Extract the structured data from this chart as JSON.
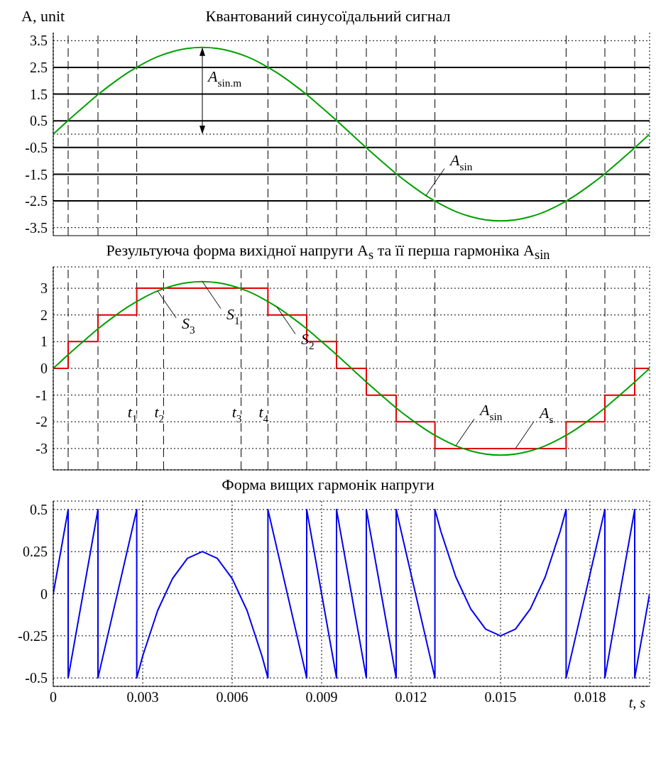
{
  "chart_data": [
    {
      "type": "line",
      "title": "Квантований синусоїдальний сигнал",
      "ylabel": "A, unit",
      "x": [
        0,
        0.0005,
        0.001,
        0.0015,
        0.002,
        0.0025,
        0.003,
        0.0035,
        0.004,
        0.0045,
        0.005,
        0.0055,
        0.006,
        0.0065,
        0.007,
        0.0075,
        0.008,
        0.0085,
        0.009,
        0.0095,
        0.01,
        0.0105,
        0.011,
        0.0115,
        0.012,
        0.0125,
        0.013,
        0.0135,
        0.014,
        0.0145,
        0.015,
        0.0155,
        0.016,
        0.0165,
        0.017,
        0.0175,
        0.018,
        0.0185,
        0.019,
        0.0195,
        0.02
      ],
      "series": [
        {
          "color": "#00a000",
          "values": [
            0,
            0.51,
            1.0,
            1.48,
            1.91,
            2.3,
            2.63,
            2.9,
            3.09,
            3.21,
            3.25,
            3.21,
            3.09,
            2.9,
            2.63,
            2.3,
            1.91,
            1.48,
            1.0,
            0.51,
            0,
            -0.51,
            -1.0,
            -1.48,
            -1.91,
            -2.3,
            -2.63,
            -2.9,
            -3.09,
            -3.21,
            -3.25,
            -3.21,
            -3.09,
            -2.9,
            -2.63,
            -2.3,
            -1.91,
            -1.48,
            -1.0,
            -0.51,
            0
          ]
        }
      ],
      "xlim": [
        0,
        0.02
      ],
      "xticks": [
        0,
        0.003,
        0.006,
        0.009,
        0.012,
        0.015,
        0.018
      ],
      "ylim": [
        -3.8,
        3.8
      ],
      "yticks": [
        -3.5,
        -2.5,
        -1.5,
        -0.5,
        0.5,
        1.5,
        2.5,
        3.5
      ],
      "grid": "x",
      "tick_labels": "y",
      "marker": "none",
      "ref_lines": [
        {
          "axis": "y",
          "value": 3.5,
          "color": "#000000",
          "line_style": "dotted"
        },
        {
          "axis": "y",
          "value": -3.5,
          "color": "#000000",
          "line_style": "dotted"
        },
        {
          "axis": "y",
          "value": 2.5,
          "color": "#000000",
          "line_style": "solid"
        },
        {
          "axis": "y",
          "value": 1.5,
          "color": "#000000",
          "line_style": "solid"
        },
        {
          "axis": "y",
          "value": 0.5,
          "color": "#000000",
          "line_style": "solid"
        },
        {
          "axis": "y",
          "value": -0.5,
          "color": "#000000",
          "line_style": "solid"
        },
        {
          "axis": "y",
          "value": -1.5,
          "color": "#000000",
          "line_style": "solid"
        },
        {
          "axis": "y",
          "value": -2.5,
          "color": "#000000",
          "line_style": "solid"
        },
        {
          "axis": "y",
          "value": 0,
          "color": "#000000",
          "line_style": "dotted"
        },
        {
          "axis": "x",
          "value": 0.0005,
          "color": "#000000",
          "line_style": "dashed"
        },
        {
          "axis": "x",
          "value": 0.0015,
          "color": "#000000",
          "line_style": "dashed"
        },
        {
          "axis": "x",
          "value": 0.0028,
          "color": "#000000",
          "line_style": "dashed"
        },
        {
          "axis": "x",
          "value": 0.0072,
          "color": "#000000",
          "line_style": "dashed"
        },
        {
          "axis": "x",
          "value": 0.0085,
          "color": "#000000",
          "line_style": "dashed"
        },
        {
          "axis": "x",
          "value": 0.0095,
          "color": "#000000",
          "line_style": "dashed"
        },
        {
          "axis": "x",
          "value": 0.0105,
          "color": "#000000",
          "line_style": "dashed"
        },
        {
          "axis": "x",
          "value": 0.0115,
          "color": "#000000",
          "line_style": "dashed"
        },
        {
          "axis": "x",
          "value": 0.0128,
          "color": "#000000",
          "line_style": "dashed"
        },
        {
          "axis": "x",
          "value": 0.0172,
          "color": "#000000",
          "line_style": "dashed"
        },
        {
          "axis": "x",
          "value": 0.0185,
          "color": "#000000",
          "line_style": "dashed"
        },
        {
          "axis": "x",
          "value": 0.0195,
          "color": "#000000",
          "line_style": "dashed"
        }
      ],
      "annotations": [
        {
          "text": "A$_{sin.m}$",
          "x": 0.005,
          "y": 3.25
        },
        {
          "text": "A$_{sin}$",
          "x": 0.0125,
          "y": -2.3
        }
      ]
    },
    {
      "type": "line",
      "title": "Результуюча форма вихідної напруги A$_{s}$ та її перша гармоніка A$_{sin}$",
      "x": [
        0,
        0.0005,
        0.001,
        0.0015,
        0.002,
        0.0025,
        0.003,
        0.0035,
        0.004,
        0.0045,
        0.005,
        0.0055,
        0.006,
        0.0065,
        0.007,
        0.0075,
        0.008,
        0.0085,
        0.009,
        0.0095,
        0.01,
        0.0105,
        0.011,
        0.0115,
        0.012,
        0.0125,
        0.013,
        0.0135,
        0.014,
        0.0145,
        0.015,
        0.0155,
        0.016,
        0.0165,
        0.017,
        0.0175,
        0.018,
        0.0185,
        0.019,
        0.0195,
        0.02
      ],
      "series": [
        {
          "type": "step",
          "color": "#e00000",
          "x": [
            0,
            0.0005,
            0.0015,
            0.0028,
            0.0072,
            0.0085,
            0.0095,
            0.0105,
            0.0115,
            0.0128,
            0.0172,
            0.0185,
            0.0195,
            0.02
          ],
          "values": [
            0,
            1,
            2,
            3,
            2,
            1,
            0,
            -1,
            -2,
            -3,
            -2,
            -1,
            0,
            0
          ]
        },
        {
          "color": "#00a000",
          "values": [
            0,
            0.51,
            1.0,
            1.48,
            1.91,
            2.3,
            2.63,
            2.9,
            3.09,
            3.21,
            3.25,
            3.21,
            3.09,
            2.9,
            2.63,
            2.3,
            1.91,
            1.48,
            1.0,
            0.51,
            0,
            -0.51,
            -1.0,
            -1.48,
            -1.91,
            -2.3,
            -2.63,
            -2.9,
            -3.09,
            -3.21,
            -3.25,
            -3.21,
            -3.09,
            -2.9,
            -2.63,
            -2.3,
            -1.91,
            -1.48,
            -1.0,
            -0.51,
            0
          ]
        }
      ],
      "xlim": [
        0,
        0.02
      ],
      "xticks": [
        0,
        0.003,
        0.006,
        0.009,
        0.012,
        0.015,
        0.018
      ],
      "ylim": [
        -3.8,
        3.8
      ],
      "yticks": [
        -3,
        -2,
        -1,
        0,
        1,
        2,
        3
      ],
      "grid": true,
      "tick_labels": "y",
      "marker": "none",
      "ref_lines": [
        {
          "axis": "x",
          "value": 0.0005,
          "color": "#000000",
          "line_style": "dashed"
        },
        {
          "axis": "x",
          "value": 0.0015,
          "color": "#000000",
          "line_style": "dashed"
        },
        {
          "axis": "x",
          "value": 0.0028,
          "color": "#000000",
          "line_style": "dashed"
        },
        {
          "axis": "x",
          "value": 0.0037,
          "color": "#000000",
          "line_style": "dashed"
        },
        {
          "axis": "x",
          "value": 0.0063,
          "color": "#000000",
          "line_style": "dashed"
        },
        {
          "axis": "x",
          "value": 0.0072,
          "color": "#000000",
          "line_style": "dashed"
        },
        {
          "axis": "x",
          "value": 0.0085,
          "color": "#000000",
          "line_style": "dashed"
        },
        {
          "axis": "x",
          "value": 0.0095,
          "color": "#000000",
          "line_style": "dashed"
        },
        {
          "axis": "x",
          "value": 0.0105,
          "color": "#000000",
          "line_style": "dashed"
        },
        {
          "axis": "x",
          "value": 0.0115,
          "color": "#000000",
          "line_style": "dashed"
        },
        {
          "axis": "x",
          "value": 0.0128,
          "color": "#000000",
          "line_style": "dashed"
        },
        {
          "axis": "x",
          "value": 0.0172,
          "color": "#000000",
          "line_style": "dashed"
        },
        {
          "axis": "x",
          "value": 0.0185,
          "color": "#000000",
          "line_style": "dashed"
        },
        {
          "axis": "x",
          "value": 0.0195,
          "color": "#000000",
          "line_style": "dashed"
        }
      ],
      "annotations": [
        {
          "text": "S$_{3}$",
          "x": 0.0035,
          "y": 2.9
        },
        {
          "text": "S$_{1}$",
          "x": 0.005,
          "y": 3.25
        },
        {
          "text": "S$_{2}$",
          "x": 0.0075,
          "y": 2.3
        },
        {
          "text": "t$_{1}$",
          "x": 0.0028,
          "y": -1.7
        },
        {
          "text": "t$_{2}$",
          "x": 0.0037,
          "y": -1.7
        },
        {
          "text": "t$_{3}$",
          "x": 0.0063,
          "y": -1.7
        },
        {
          "text": "t$_{4}$",
          "x": 0.0072,
          "y": -1.7
        },
        {
          "text": "A$_{sin}$",
          "x": 0.0135,
          "y": -2.9
        },
        {
          "text": "A$_{s}$",
          "x": 0.0155,
          "y": -3
        }
      ]
    },
    {
      "type": "line",
      "title": "Форма вищих гармонік напруги",
      "xlabel": "t, s",
      "series": [
        {
          "color": "#0000ee",
          "x": [
            0,
            0.0005,
            0.0005,
            0.0015,
            0.0015,
            0.0028,
            0.0028,
            0.003,
            0.0035,
            0.004,
            0.0045,
            0.005,
            0.0055,
            0.006,
            0.0065,
            0.007,
            0.0072,
            0.0072,
            0.0085,
            0.0085,
            0.0095,
            0.0095,
            0.0105,
            0.0105,
            0.0115,
            0.0115,
            0.0128,
            0.0128,
            0.013,
            0.0135,
            0.014,
            0.0145,
            0.015,
            0.0155,
            0.016,
            0.0165,
            0.017,
            0.0172,
            0.0172,
            0.0185,
            0.0185,
            0.0195,
            0.0195,
            0.02
          ],
          "values": [
            0,
            0.5,
            -0.5,
            0.5,
            -0.5,
            0.5,
            -0.5,
            -0.37,
            -0.1,
            0.09,
            0.21,
            0.25,
            0.21,
            0.09,
            -0.1,
            -0.37,
            -0.5,
            0.5,
            -0.5,
            0.5,
            -0.5,
            0.5,
            -0.5,
            0.5,
            -0.5,
            0.5,
            -0.5,
            0.5,
            0.37,
            0.1,
            -0.09,
            -0.21,
            -0.25,
            -0.21,
            -0.09,
            0.1,
            0.37,
            0.5,
            -0.5,
            0.5,
            -0.5,
            0.5,
            -0.5,
            0
          ]
        }
      ],
      "xlim": [
        0,
        0.02
      ],
      "xticks": [
        0,
        0.003,
        0.006,
        0.009,
        0.012,
        0.015,
        0.018
      ],
      "ylim": [
        -0.55,
        0.55
      ],
      "yticks": [
        -0.5,
        -0.25,
        0,
        0.25,
        0.5
      ],
      "grid": true,
      "marker": "none"
    }
  ]
}
